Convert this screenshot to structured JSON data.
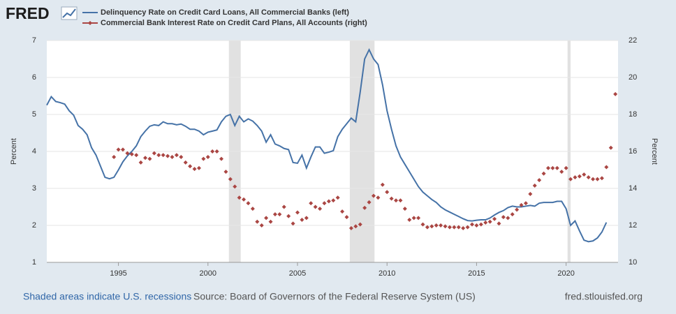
{
  "chart_data": {
    "type": "line",
    "logo": "FRED",
    "ylabel": "Percent",
    "y2label": "Percent",
    "note": "Shaded areas indicate U.S. recessions",
    "source": "Source: Board of Governors of the Federal Reserve System (US)",
    "site": "fred.stlouisfed.org",
    "xlim": [
      1991,
      2022.9
    ],
    "xticks": [
      1995,
      2000,
      2005,
      2010,
      2015,
      2020
    ],
    "ylim": [
      1,
      7
    ],
    "yticks": [
      1,
      2,
      3,
      4,
      5,
      6,
      7
    ],
    "y2lim": [
      10,
      22
    ],
    "y2ticks": [
      10,
      12,
      14,
      16,
      18,
      20,
      22
    ],
    "grid": true,
    "recessions": [
      [
        2001.17,
        2001.83
      ],
      [
        2007.92,
        2009.3
      ],
      [
        2020.08,
        2020.25
      ]
    ],
    "x": [
      1991,
      1991.25,
      1991.5,
      1991.75,
      1992,
      1992.25,
      1992.5,
      1992.75,
      1993,
      1993.25,
      1993.5,
      1993.75,
      1994,
      1994.25,
      1994.5,
      1994.75,
      1995,
      1995.25,
      1995.5,
      1995.75,
      1996,
      1996.25,
      1996.5,
      1996.75,
      1997,
      1997.25,
      1997.5,
      1997.75,
      1998,
      1998.25,
      1998.5,
      1998.75,
      1999,
      1999.25,
      1999.5,
      1999.75,
      2000,
      2000.25,
      2000.5,
      2000.75,
      2001,
      2001.25,
      2001.5,
      2001.75,
      2002,
      2002.25,
      2002.5,
      2002.75,
      2003,
      2003.25,
      2003.5,
      2003.75,
      2004,
      2004.25,
      2004.5,
      2004.75,
      2005,
      2005.25,
      2005.5,
      2005.75,
      2006,
      2006.25,
      2006.5,
      2006.75,
      2007,
      2007.25,
      2007.5,
      2007.75,
      2008,
      2008.25,
      2008.5,
      2008.75,
      2009,
      2009.25,
      2009.5,
      2009.75,
      2010,
      2010.25,
      2010.5,
      2010.75,
      2011,
      2011.25,
      2011.5,
      2011.75,
      2012,
      2012.25,
      2012.5,
      2012.75,
      2013,
      2013.25,
      2013.5,
      2013.75,
      2014,
      2014.25,
      2014.5,
      2014.75,
      2015,
      2015.25,
      2015.5,
      2015.75,
      2016,
      2016.25,
      2016.5,
      2016.75,
      2017,
      2017.25,
      2017.5,
      2017.75,
      2018,
      2018.25,
      2018.5,
      2018.75,
      2019,
      2019.25,
      2019.5,
      2019.75,
      2020,
      2020.25,
      2020.5,
      2020.75,
      2021,
      2021.25,
      2021.5,
      2021.75,
      2022,
      2022.25,
      2022.5,
      2022.75
    ],
    "series": [
      {
        "name": "Delinquency Rate on Credit Card Loans, All Commercial Banks (left)",
        "color": "#4572a7",
        "style": "line",
        "values": [
          5.25,
          5.48,
          5.35,
          5.32,
          5.28,
          5.1,
          4.98,
          4.7,
          4.6,
          4.45,
          4.1,
          3.9,
          3.6,
          3.3,
          3.26,
          3.3,
          3.5,
          3.72,
          3.88,
          4.0,
          4.15,
          4.4,
          4.55,
          4.68,
          4.72,
          4.7,
          4.8,
          4.75,
          4.75,
          4.72,
          4.74,
          4.68,
          4.6,
          4.6,
          4.55,
          4.45,
          4.52,
          4.55,
          4.58,
          4.8,
          4.95,
          5.0,
          4.7,
          4.95,
          4.8,
          4.88,
          4.82,
          4.7,
          4.55,
          4.25,
          4.45,
          4.2,
          4.15,
          4.08,
          4.05,
          3.7,
          3.68,
          3.9,
          3.55,
          3.85,
          4.12,
          4.12,
          3.95,
          3.98,
          4.02,
          4.4,
          4.6,
          4.75,
          4.9,
          4.8,
          5.6,
          6.5,
          6.75,
          6.5,
          6.35,
          5.8,
          5.1,
          4.6,
          4.15,
          3.85,
          3.65,
          3.45,
          3.25,
          3.05,
          2.9,
          2.8,
          2.7,
          2.62,
          2.5,
          2.42,
          2.36,
          2.3,
          2.24,
          2.18,
          2.13,
          2.12,
          2.14,
          2.15,
          2.15,
          2.2,
          2.28,
          2.35,
          2.4,
          2.48,
          2.52,
          2.5,
          2.5,
          2.52,
          2.54,
          2.52,
          2.6,
          2.62,
          2.62,
          2.62,
          2.65,
          2.65,
          2.45,
          2.0,
          2.12,
          1.85,
          1.6,
          1.56,
          1.58,
          1.66,
          1.82,
          2.08,
          null,
          null
        ]
      },
      {
        "name": "Commercial Bank Interest Rate on Credit Card Plans, All Accounts (right)",
        "color": "#aa4643",
        "style": "markers",
        "axis": "y2",
        "values": [
          null,
          null,
          null,
          null,
          null,
          null,
          null,
          null,
          null,
          null,
          null,
          null,
          null,
          null,
          null,
          15.7,
          16.1,
          16.1,
          15.9,
          15.85,
          15.8,
          15.4,
          15.65,
          15.6,
          15.9,
          15.8,
          15.8,
          15.75,
          15.7,
          15.8,
          15.7,
          15.4,
          15.2,
          15.05,
          15.1,
          15.6,
          15.7,
          16.0,
          16.0,
          15.6,
          14.9,
          14.5,
          14.1,
          13.5,
          13.4,
          13.2,
          12.9,
          12.2,
          12.0,
          12.4,
          12.2,
          12.6,
          12.6,
          13.0,
          12.5,
          12.1,
          12.7,
          12.3,
          12.4,
          13.2,
          13.0,
          12.9,
          13.2,
          13.3,
          13.35,
          13.5,
          12.75,
          12.45,
          11.85,
          11.95,
          12.05,
          12.95,
          13.25,
          13.6,
          13.5,
          14.2,
          13.8,
          13.45,
          13.35,
          13.35,
          12.9,
          12.3,
          12.4,
          12.4,
          12.05,
          11.9,
          11.95,
          12.0,
          12.0,
          11.95,
          11.9,
          11.9,
          11.9,
          11.85,
          11.9,
          12.05,
          12.0,
          12.05,
          12.15,
          12.2,
          12.35,
          12.1,
          12.45,
          12.4,
          12.6,
          12.85,
          13.1,
          13.2,
          13.7,
          14.15,
          14.45,
          14.8,
          15.1,
          15.1,
          15.1,
          14.9,
          15.1,
          14.5,
          14.6,
          14.65,
          14.75,
          14.6,
          14.5,
          14.5,
          14.55,
          15.15,
          16.2,
          19.1
        ]
      }
    ]
  }
}
